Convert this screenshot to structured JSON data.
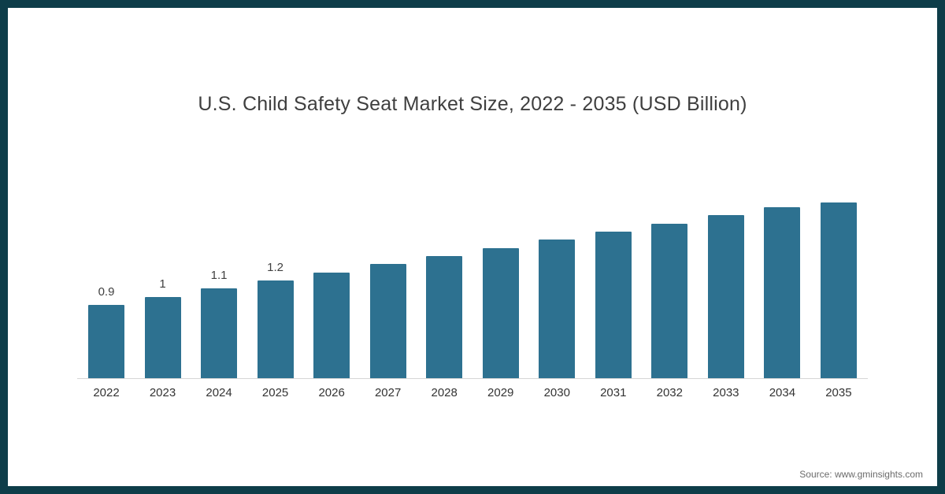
{
  "chart_data": {
    "type": "bar",
    "title": "U.S. Child Safety Seat Market Size, 2022 - 2035 (USD Billion)",
    "categories": [
      "2022",
      "2023",
      "2024",
      "2025",
      "2026",
      "2027",
      "2028",
      "2029",
      "2030",
      "2031",
      "2032",
      "2033",
      "2034",
      "2035"
    ],
    "values": [
      0.9,
      1.0,
      1.1,
      1.2,
      1.3,
      1.4,
      1.5,
      1.6,
      1.7,
      1.8,
      1.9,
      2.0,
      2.1,
      2.2
    ],
    "point_labels": [
      "0.9",
      "1",
      "1.1",
      "1.2",
      "",
      "",
      "",
      "",
      "",
      "",
      "",
      "",
      "",
      ""
    ],
    "xlabel": "",
    "ylabel": "",
    "ylim": [
      0,
      2.4
    ],
    "grid": false,
    "legend": "none",
    "bar_color": "#2d7190"
  },
  "source": {
    "label": "Source: www.gminsights.com"
  },
  "frame": {
    "border_color": "#0e3d49"
  }
}
